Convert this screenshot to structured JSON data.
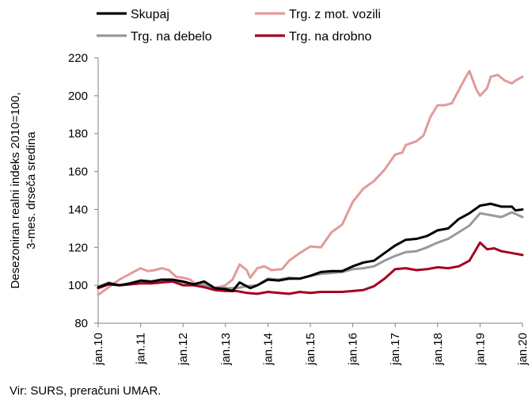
{
  "chart_data": {
    "type": "line",
    "ylabel_lines": [
      "Desezoniran realni indeks 2010=100,",
      "3-mes. drseča sredina"
    ],
    "ylim": [
      80,
      220
    ],
    "yticks": [
      80,
      100,
      120,
      140,
      160,
      180,
      200,
      220
    ],
    "x_range": [
      0,
      120
    ],
    "xticks": [
      {
        "label": "jan.10",
        "t": 0
      },
      {
        "label": "jan.11",
        "t": 12
      },
      {
        "label": "jan.12",
        "t": 24
      },
      {
        "label": "jan.13",
        "t": 36
      },
      {
        "label": "jan.14",
        "t": 48
      },
      {
        "label": "jan.15",
        "t": 60
      },
      {
        "label": "jan.16",
        "t": 72
      },
      {
        "label": "jan.17",
        "t": 84
      },
      {
        "label": "jan.18",
        "t": 96
      },
      {
        "label": "jan.19",
        "t": 108
      },
      {
        "label": "jan.20",
        "t": 120
      }
    ],
    "grid": false,
    "legend_position": "top",
    "source": "Vir: SURS, preračuni UMAR.",
    "series": [
      {
        "name": "Skupaj",
        "color": "#000000",
        "points": [
          [
            0,
            99
          ],
          [
            3,
            101
          ],
          [
            6,
            100
          ],
          [
            9,
            101
          ],
          [
            12,
            102.5
          ],
          [
            15,
            102
          ],
          [
            18,
            103
          ],
          [
            21,
            103
          ],
          [
            24,
            102
          ],
          [
            27,
            100.5
          ],
          [
            30,
            102
          ],
          [
            33,
            98.5
          ],
          [
            36,
            98
          ],
          [
            38,
            97
          ],
          [
            40,
            101.5
          ],
          [
            43,
            98.5
          ],
          [
            45,
            100
          ],
          [
            48,
            103
          ],
          [
            51,
            102.5
          ],
          [
            54,
            103.5
          ],
          [
            57,
            103.5
          ],
          [
            60,
            105
          ],
          [
            63,
            107
          ],
          [
            66,
            107.5
          ],
          [
            69,
            107.5
          ],
          [
            72,
            110
          ],
          [
            75,
            112
          ],
          [
            78,
            113
          ],
          [
            81,
            117
          ],
          [
            84,
            121
          ],
          [
            87,
            124
          ],
          [
            90,
            124.5
          ],
          [
            93,
            126
          ],
          [
            96,
            129
          ],
          [
            99,
            130
          ],
          [
            102,
            135
          ],
          [
            105,
            138
          ],
          [
            108,
            142
          ],
          [
            111,
            143
          ],
          [
            114,
            141.5
          ],
          [
            117,
            141.5
          ],
          [
            118,
            139.5
          ],
          [
            120,
            140
          ]
        ]
      },
      {
        "name": "Trg. z mot. vozili",
        "color": "#e39a9a",
        "points": [
          [
            0,
            95
          ],
          [
            3,
            99
          ],
          [
            6,
            103
          ],
          [
            9,
            106
          ],
          [
            12,
            109
          ],
          [
            14,
            107.5
          ],
          [
            16,
            108
          ],
          [
            18,
            109
          ],
          [
            20,
            108
          ],
          [
            22,
            104.5
          ],
          [
            24,
            104
          ],
          [
            26,
            103
          ],
          [
            28,
            100
          ],
          [
            30,
            101.5
          ],
          [
            32,
            98.5
          ],
          [
            34,
            99
          ],
          [
            36,
            100
          ],
          [
            38,
            103
          ],
          [
            40,
            111
          ],
          [
            42,
            108
          ],
          [
            43,
            104
          ],
          [
            45,
            109
          ],
          [
            47,
            110
          ],
          [
            49,
            108
          ],
          [
            52,
            108.5
          ],
          [
            54,
            113
          ],
          [
            57,
            117
          ],
          [
            60,
            120.5
          ],
          [
            63,
            120
          ],
          [
            66,
            128
          ],
          [
            69,
            132
          ],
          [
            72,
            144
          ],
          [
            75,
            151
          ],
          [
            78,
            155
          ],
          [
            81,
            161
          ],
          [
            84,
            169
          ],
          [
            86,
            170
          ],
          [
            87,
            174
          ],
          [
            90,
            176
          ],
          [
            92,
            179
          ],
          [
            94,
            189
          ],
          [
            96,
            195
          ],
          [
            98,
            195
          ],
          [
            100,
            196
          ],
          [
            102,
            203
          ],
          [
            104,
            210
          ],
          [
            105,
            213
          ],
          [
            107,
            203
          ],
          [
            108,
            200
          ],
          [
            110,
            204
          ],
          [
            111,
            210
          ],
          [
            113,
            211
          ],
          [
            115,
            208
          ],
          [
            117,
            206.5
          ],
          [
            118,
            208
          ],
          [
            120,
            210
          ]
        ]
      },
      {
        "name": "Trg. na debelo",
        "color": "#999999",
        "points": [
          [
            0,
            99
          ],
          [
            3,
            101.5
          ],
          [
            6,
            100
          ],
          [
            9,
            100.5
          ],
          [
            12,
            102
          ],
          [
            15,
            101.5
          ],
          [
            18,
            102
          ],
          [
            21,
            102
          ],
          [
            24,
            101.5
          ],
          [
            27,
            100.5
          ],
          [
            30,
            100
          ],
          [
            33,
            98.5
          ],
          [
            36,
            98.5
          ],
          [
            39,
            98.5
          ],
          [
            42,
            99.5
          ],
          [
            45,
            100
          ],
          [
            48,
            103.5
          ],
          [
            51,
            103
          ],
          [
            54,
            104
          ],
          [
            57,
            103.5
          ],
          [
            60,
            105
          ],
          [
            63,
            106
          ],
          [
            66,
            106.5
          ],
          [
            69,
            107
          ],
          [
            72,
            108.5
          ],
          [
            75,
            109
          ],
          [
            78,
            110
          ],
          [
            81,
            113
          ],
          [
            84,
            115.5
          ],
          [
            87,
            117.5
          ],
          [
            90,
            118
          ],
          [
            93,
            120
          ],
          [
            96,
            122.5
          ],
          [
            99,
            124.5
          ],
          [
            102,
            128
          ],
          [
            105,
            131.5
          ],
          [
            108,
            138
          ],
          [
            111,
            137
          ],
          [
            114,
            136
          ],
          [
            117,
            138.5
          ],
          [
            120,
            136
          ]
        ]
      },
      {
        "name": "Trg. na drobno",
        "color": "#a50021",
        "points": [
          [
            0,
            98.5
          ],
          [
            3,
            100.5
          ],
          [
            6,
            100
          ],
          [
            9,
            100.5
          ],
          [
            12,
            101
          ],
          [
            15,
            101
          ],
          [
            18,
            101.5
          ],
          [
            21,
            102
          ],
          [
            24,
            100
          ],
          [
            27,
            100
          ],
          [
            30,
            99
          ],
          [
            33,
            97.5
          ],
          [
            36,
            97
          ],
          [
            39,
            97
          ],
          [
            42,
            96
          ],
          [
            45,
            95.5
          ],
          [
            48,
            96.5
          ],
          [
            51,
            96
          ],
          [
            54,
            95.5
          ],
          [
            57,
            96.5
          ],
          [
            60,
            96
          ],
          [
            63,
            96.5
          ],
          [
            66,
            96.5
          ],
          [
            69,
            96.5
          ],
          [
            72,
            97
          ],
          [
            75,
            97.5
          ],
          [
            78,
            99.5
          ],
          [
            81,
            103.5
          ],
          [
            84,
            108.5
          ],
          [
            87,
            109
          ],
          [
            90,
            108
          ],
          [
            93,
            108.5
          ],
          [
            96,
            109.5
          ],
          [
            99,
            109
          ],
          [
            102,
            110
          ],
          [
            105,
            113
          ],
          [
            108,
            122.5
          ],
          [
            110,
            119
          ],
          [
            112,
            119.5
          ],
          [
            114,
            118
          ],
          [
            117,
            117
          ],
          [
            120,
            116
          ]
        ]
      }
    ]
  }
}
